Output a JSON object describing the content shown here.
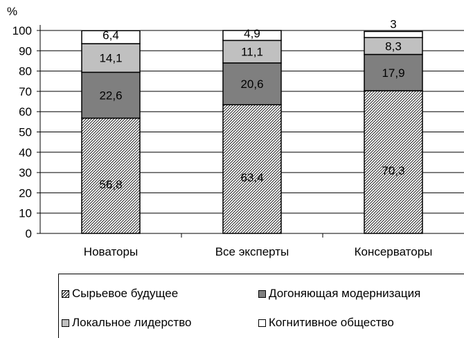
{
  "chart_data": {
    "type": "bar",
    "stacked": true,
    "y_axis_unit_label": "%",
    "ylim": [
      0,
      100
    ],
    "y_ticks": [
      "0",
      "10",
      "20",
      "30",
      "40",
      "50",
      "60",
      "70",
      "80",
      "90",
      "100"
    ],
    "categories": [
      "Новаторы",
      "Все эксперты",
      "Консерваторы"
    ],
    "series": [
      {
        "name": "Сырьевое будущее",
        "values": [
          56.8,
          63.4,
          70.3
        ],
        "labels": [
          "56,8",
          "63,4",
          "70,3"
        ],
        "fill": "hatch"
      },
      {
        "name": "Догоняющая модернизация",
        "values": [
          22.6,
          20.6,
          17.9
        ],
        "labels": [
          "22,6",
          "20,6",
          "17,9"
        ],
        "fill": "#7f7f7f"
      },
      {
        "name": "Локальное лидерство",
        "values": [
          14.1,
          11.1,
          8.3
        ],
        "labels": [
          "14,1",
          "11,1",
          "8,3"
        ],
        "fill": "#c0c0c0"
      },
      {
        "name": "Когнитивное общество",
        "values": [
          6.4,
          4.9,
          3
        ],
        "labels": [
          "6,4",
          "4,9",
          "3"
        ],
        "fill": "#ffffff"
      }
    ],
    "gridlines": true,
    "legend_position": "bottom"
  }
}
